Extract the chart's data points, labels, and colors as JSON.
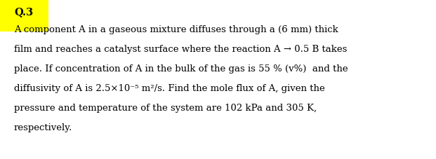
{
  "title": "Q.3",
  "title_bg": "#ffff00",
  "title_color": "#000000",
  "title_fontsize": 10.5,
  "body_fontsize": 9.5,
  "background_color": "#ffffff",
  "line1": "A component A in a gaseous mixture diffuses through a (6 mm) thick",
  "line2": "film and reaches a catalyst surface where the reaction A → 0.5 B takes",
  "line3": "place. If concentration of A in the bulk of the gas is 55 % (v%)  and the",
  "line4": "diffusivity of A is 2.5×10⁻⁵ m²/s. Find the mole flux of A, given the",
  "line5": "pressure and temperature of the system are 102 kPa and 305 K,",
  "line6": "respectively."
}
